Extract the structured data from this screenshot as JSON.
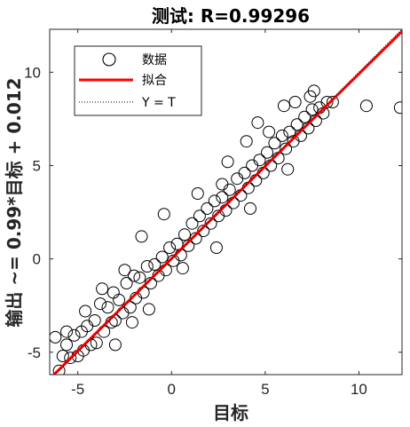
{
  "chart_data": {
    "type": "scatter",
    "title": "测试: R=0.99296",
    "xlabel": "目标",
    "ylabel": "输出 ~= 0.99*目标 + 0.012",
    "xlim": [
      -6.5,
      12.3
    ],
    "ylim": [
      -6.2,
      12.3
    ],
    "xticks": [
      -5,
      0,
      5,
      10
    ],
    "yticks": [
      -5,
      0,
      5,
      10
    ],
    "xtick_labels": [
      "-5",
      "0",
      "5",
      "10"
    ],
    "ytick_labels": [
      "-5",
      "0",
      "5",
      "10"
    ],
    "grid": false,
    "legend_placement": "top-left",
    "fit": {
      "slope": 0.99,
      "intercept": 0.012
    },
    "legend": [
      {
        "label": "数据",
        "style": "circle",
        "color": "#000000"
      },
      {
        "label": "拟合",
        "style": "line",
        "color": "#ff0000"
      },
      {
        "label": "Y = T",
        "style": "dotted",
        "color": "#000000"
      }
    ],
    "series": [
      {
        "name": "数据",
        "marker": "circle",
        "points": [
          [
            -6.0,
            -6.0
          ],
          [
            -6.2,
            -4.2
          ],
          [
            -5.8,
            -5.2
          ],
          [
            -5.6,
            -4.6
          ],
          [
            -5.4,
            -5.3
          ],
          [
            -5.2,
            -4.1
          ],
          [
            -5.0,
            -5.2
          ],
          [
            -4.8,
            -3.9
          ],
          [
            -4.7,
            -4.9
          ],
          [
            -4.5,
            -3.6
          ],
          [
            -4.3,
            -4.6
          ],
          [
            -4.1,
            -3.3
          ],
          [
            -4.0,
            -4.5
          ],
          [
            -3.8,
            -2.4
          ],
          [
            -3.6,
            -3.9
          ],
          [
            -3.4,
            -2.6
          ],
          [
            -3.2,
            -3.4
          ],
          [
            -3.1,
            -1.8
          ],
          [
            -3.0,
            -3.3
          ],
          [
            -2.8,
            -2.2
          ],
          [
            -2.6,
            -2.9
          ],
          [
            -2.4,
            -1.3
          ],
          [
            -2.2,
            -2.6
          ],
          [
            -2.0,
            -0.9
          ],
          [
            -1.9,
            -2.1
          ],
          [
            -1.7,
            -1.0
          ],
          [
            -1.5,
            -1.8
          ],
          [
            -1.3,
            -0.4
          ],
          [
            -1.1,
            -1.3
          ],
          [
            -0.9,
            -0.3
          ],
          [
            -0.7,
            -0.9
          ],
          [
            -0.5,
            0.1
          ],
          [
            -0.3,
            -0.6
          ],
          [
            -0.1,
            0.6
          ],
          [
            0.1,
            -0.1
          ],
          [
            0.3,
            0.8
          ],
          [
            0.5,
            0.2
          ],
          [
            0.7,
            1.3
          ],
          [
            0.9,
            0.7
          ],
          [
            1.1,
            1.9
          ],
          [
            1.3,
            1.1
          ],
          [
            1.5,
            2.3
          ],
          [
            1.7,
            1.5
          ],
          [
            1.9,
            2.7
          ],
          [
            2.1,
            1.9
          ],
          [
            2.3,
            3.1
          ],
          [
            2.5,
            2.3
          ],
          [
            2.7,
            3.3
          ],
          [
            2.9,
            2.6
          ],
          [
            3.1,
            3.7
          ],
          [
            3.3,
            3.0
          ],
          [
            3.5,
            4.3
          ],
          [
            3.7,
            3.4
          ],
          [
            3.9,
            4.6
          ],
          [
            4.1,
            3.8
          ],
          [
            4.3,
            5.0
          ],
          [
            4.5,
            4.2
          ],
          [
            4.7,
            5.3
          ],
          [
            4.9,
            4.6
          ],
          [
            5.1,
            5.7
          ],
          [
            5.3,
            5.0
          ],
          [
            5.5,
            6.2
          ],
          [
            5.7,
            5.4
          ],
          [
            5.9,
            6.6
          ],
          [
            6.1,
            5.9
          ],
          [
            6.3,
            6.8
          ],
          [
            6.5,
            6.3
          ],
          [
            6.7,
            7.2
          ],
          [
            6.9,
            6.6
          ],
          [
            7.1,
            7.6
          ],
          [
            7.3,
            7.0
          ],
          [
            7.5,
            8.0
          ],
          [
            7.7,
            7.4
          ],
          [
            7.9,
            8.1
          ],
          [
            8.1,
            7.8
          ],
          [
            8.3,
            8.4
          ],
          [
            8.6,
            8.4
          ],
          [
            7.4,
            8.7
          ],
          [
            5.2,
            6.8
          ],
          [
            4.0,
            6.3
          ],
          [
            2.7,
            4.0
          ],
          [
            1.4,
            3.5
          ],
          [
            -0.4,
            2.4
          ],
          [
            -1.6,
            1.2
          ],
          [
            -2.5,
            -0.6
          ],
          [
            -3.7,
            -1.6
          ],
          [
            -5.6,
            -3.9
          ],
          [
            -3.0,
            -4.6
          ],
          [
            -1.2,
            -2.7
          ],
          [
            0.6,
            -0.5
          ],
          [
            2.4,
            0.6
          ],
          [
            4.2,
            2.7
          ],
          [
            6.2,
            4.8
          ],
          [
            10.4,
            8.2
          ],
          [
            12.2,
            8.1
          ],
          [
            6.0,
            8.2
          ],
          [
            6.6,
            8.4
          ],
          [
            4.6,
            7.3
          ],
          [
            3.0,
            5.2
          ],
          [
            -4.6,
            -2.8
          ],
          [
            -2.1,
            -3.4
          ],
          [
            7.6,
            9.0
          ]
        ]
      }
    ]
  }
}
